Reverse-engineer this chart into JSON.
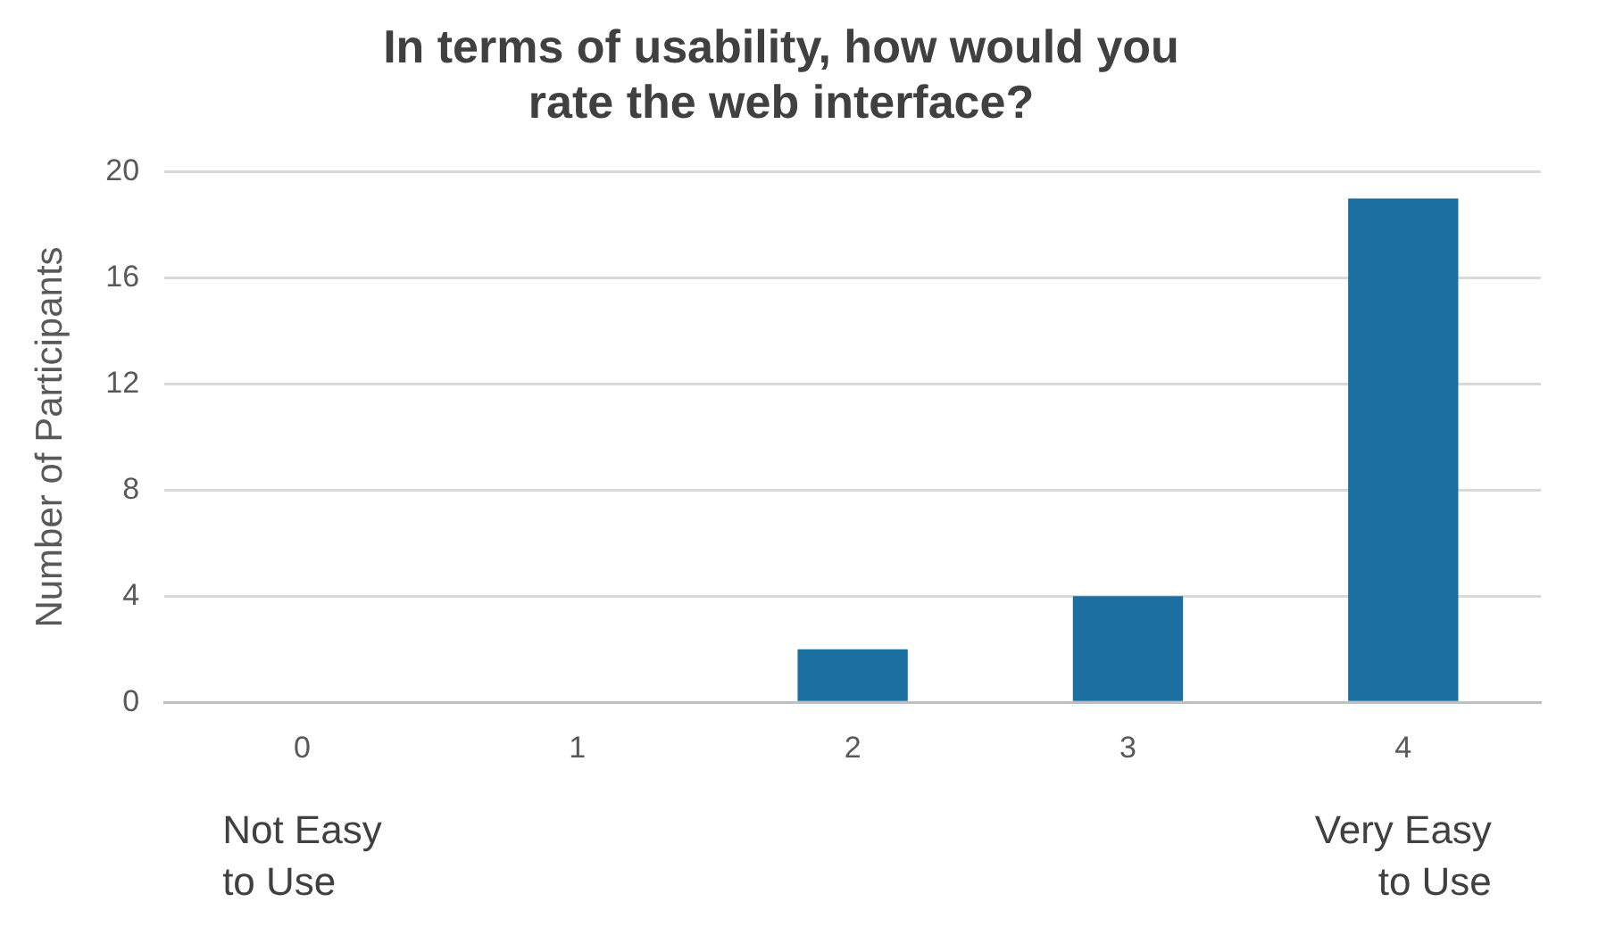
{
  "chart_data": {
    "type": "bar",
    "title": "In terms of usability, how would you rate the web interface?",
    "ylabel": "Number of Participants",
    "categories": [
      "0",
      "1",
      "2",
      "3",
      "4"
    ],
    "values": [
      0,
      0,
      2,
      4,
      19
    ],
    "color": "#1b6fa1",
    "ylim": [
      0,
      20
    ],
    "yticks": [
      0,
      4,
      8,
      12,
      16,
      20
    ],
    "grid": "y",
    "legend": false,
    "annotations": [
      "Not Easy to Use",
      "Very Easy to Use"
    ]
  }
}
